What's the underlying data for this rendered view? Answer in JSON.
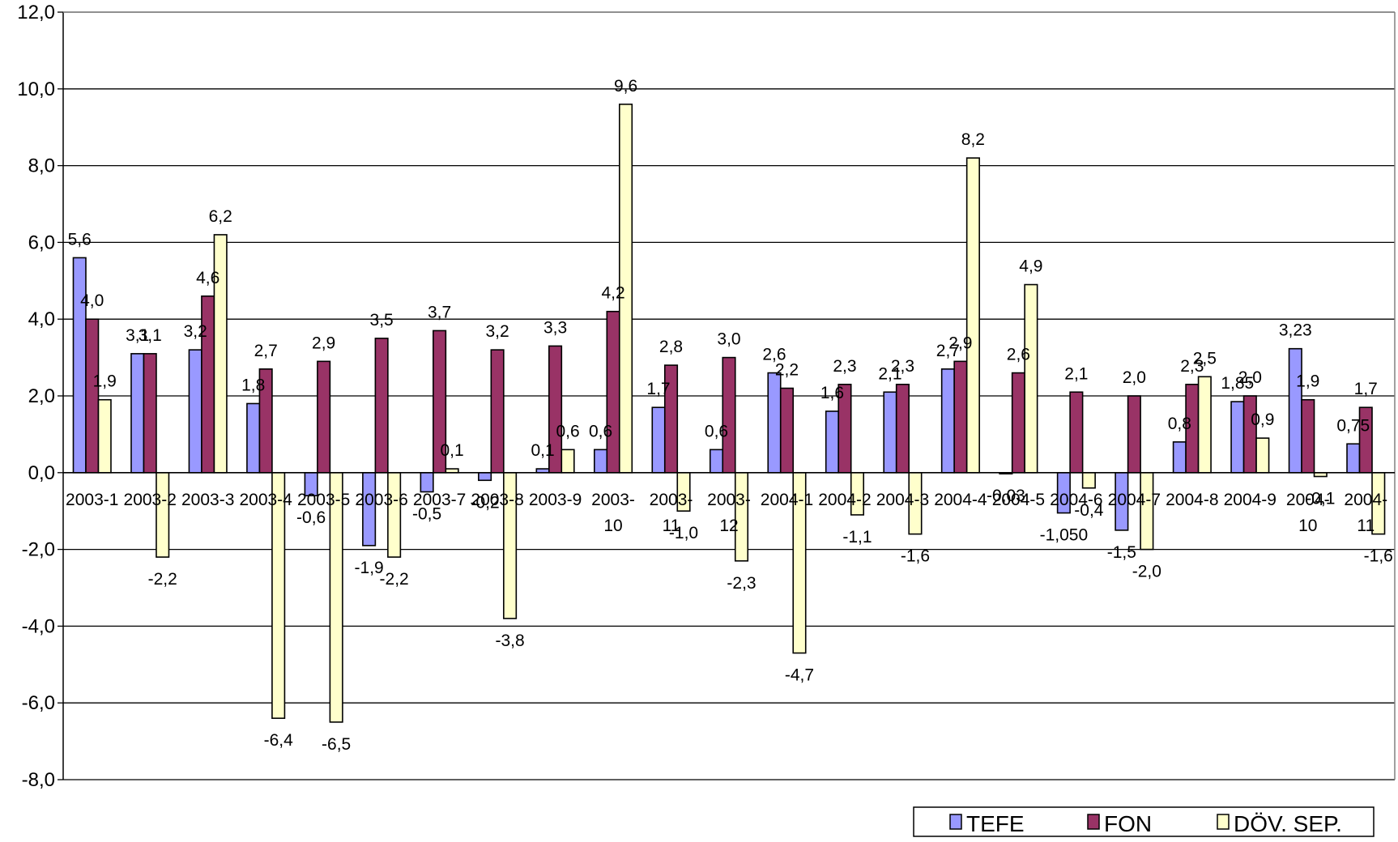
{
  "chart_data": {
    "type": "bar",
    "categories": [
      "2003-1",
      "2003-2",
      "2003-3",
      "2003-4",
      "2003-5",
      "2003-6",
      "2003-7",
      "2003-8",
      "2003-9",
      "2003-10",
      "2003-11",
      "2003-12",
      "2004-1",
      "2004-2",
      "2004-3",
      "2004-4",
      "2004-5",
      "2004-6",
      "2004-7",
      "2004-8",
      "2004-9",
      "2004-10",
      "2004-11"
    ],
    "category_labels": [
      [
        "2003-1"
      ],
      [
        "2003-2"
      ],
      [
        "2003-3"
      ],
      [
        "2003-4"
      ],
      [
        "2003-5"
      ],
      [
        "2003-6"
      ],
      [
        "2003-7"
      ],
      [
        "2003-8"
      ],
      [
        "2003-9"
      ],
      [
        "2003-",
        "10"
      ],
      [
        "2003-",
        "11"
      ],
      [
        "2003-",
        "12"
      ],
      [
        "2004-1"
      ],
      [
        "2004-2"
      ],
      [
        "2004-3"
      ],
      [
        "2004-4"
      ],
      [
        "2004-5"
      ],
      [
        "2004-6"
      ],
      [
        "2004-7"
      ],
      [
        "2004-8"
      ],
      [
        "2004-9"
      ],
      [
        "2004-",
        "10"
      ],
      [
        "2004-",
        "11"
      ]
    ],
    "series": [
      {
        "name": "TEFE",
        "color": "#9999ff",
        "values": [
          5.6,
          3.1,
          3.2,
          1.8,
          -0.6,
          -1.9,
          -0.5,
          -0.2,
          0.1,
          0.6,
          1.7,
          0.6,
          2.6,
          1.6,
          2.1,
          2.7,
          -0.03,
          -1.05,
          -1.5,
          0.8,
          1.85,
          3.23,
          0.75
        ],
        "labels": [
          "5,6",
          "3,1",
          "3,2",
          "1,8",
          "-0,6",
          "-1,9",
          "-0,5",
          "-0,2",
          "0,1",
          "0,6",
          "1,7",
          "0,6",
          "2,6",
          "1,6",
          "2,1",
          "2,7",
          "-0,03",
          "-1,050",
          "-1,5",
          "0,8",
          "1,85",
          "3,23",
          "0,75"
        ]
      },
      {
        "name": "FON",
        "color": "#993366",
        "values": [
          4.0,
          3.1,
          4.6,
          2.7,
          2.9,
          3.5,
          3.7,
          3.2,
          3.3,
          4.2,
          2.8,
          3.0,
          2.2,
          2.3,
          2.3,
          2.9,
          2.6,
          2.1,
          2.0,
          2.3,
          2.0,
          1.9,
          1.7
        ],
        "labels": [
          "4,0",
          "3,1",
          "4,6",
          "2,7",
          "2,9",
          "3,5",
          "3,7",
          "3,2",
          "3,3",
          "4,2",
          "2,8",
          "3,0",
          "2,2",
          "2,3",
          "2,3",
          "2,9",
          "2,6",
          "2,1",
          "2,0",
          "2,3",
          "2,0",
          "1,9",
          "1,7"
        ]
      },
      {
        "name": "DÖV. SEP.",
        "color": "#ffffcc",
        "values": [
          1.9,
          -2.2,
          6.2,
          -6.4,
          -6.5,
          -2.2,
          0.1,
          -3.8,
          0.6,
          9.6,
          -1.0,
          -2.3,
          -4.7,
          -1.1,
          -1.6,
          8.2,
          4.9,
          -0.4,
          -2.0,
          2.5,
          0.9,
          -0.1,
          -1.6
        ],
        "labels": [
          "1,9",
          "-2,2",
          "6,2",
          "-6,4",
          "-6,5",
          "-2,2",
          "0,1",
          "-3,8",
          "0,6",
          "9,6",
          "-1,0",
          "-2,3",
          "-4,7",
          "-1,1",
          "-1,6",
          "8,2",
          "4,9",
          "-0,4",
          "-2,0",
          "2,5",
          "0,9",
          "-0,1",
          "-1,6"
        ]
      }
    ],
    "ylim": [
      -8,
      12
    ],
    "yticks": [
      12,
      10,
      8,
      6,
      4,
      2,
      0,
      -2,
      -4,
      -6,
      -8
    ],
    "ytick_labels": [
      "12,0",
      "10,0",
      "8,0",
      "6,0",
      "4,0",
      "2,0",
      "0,0",
      "-2,0",
      "-4,0",
      "-6,0",
      "-8,0"
    ],
    "grid": true,
    "legend_position": "bottom-right",
    "title": "",
    "xlabel": "",
    "ylabel": ""
  }
}
